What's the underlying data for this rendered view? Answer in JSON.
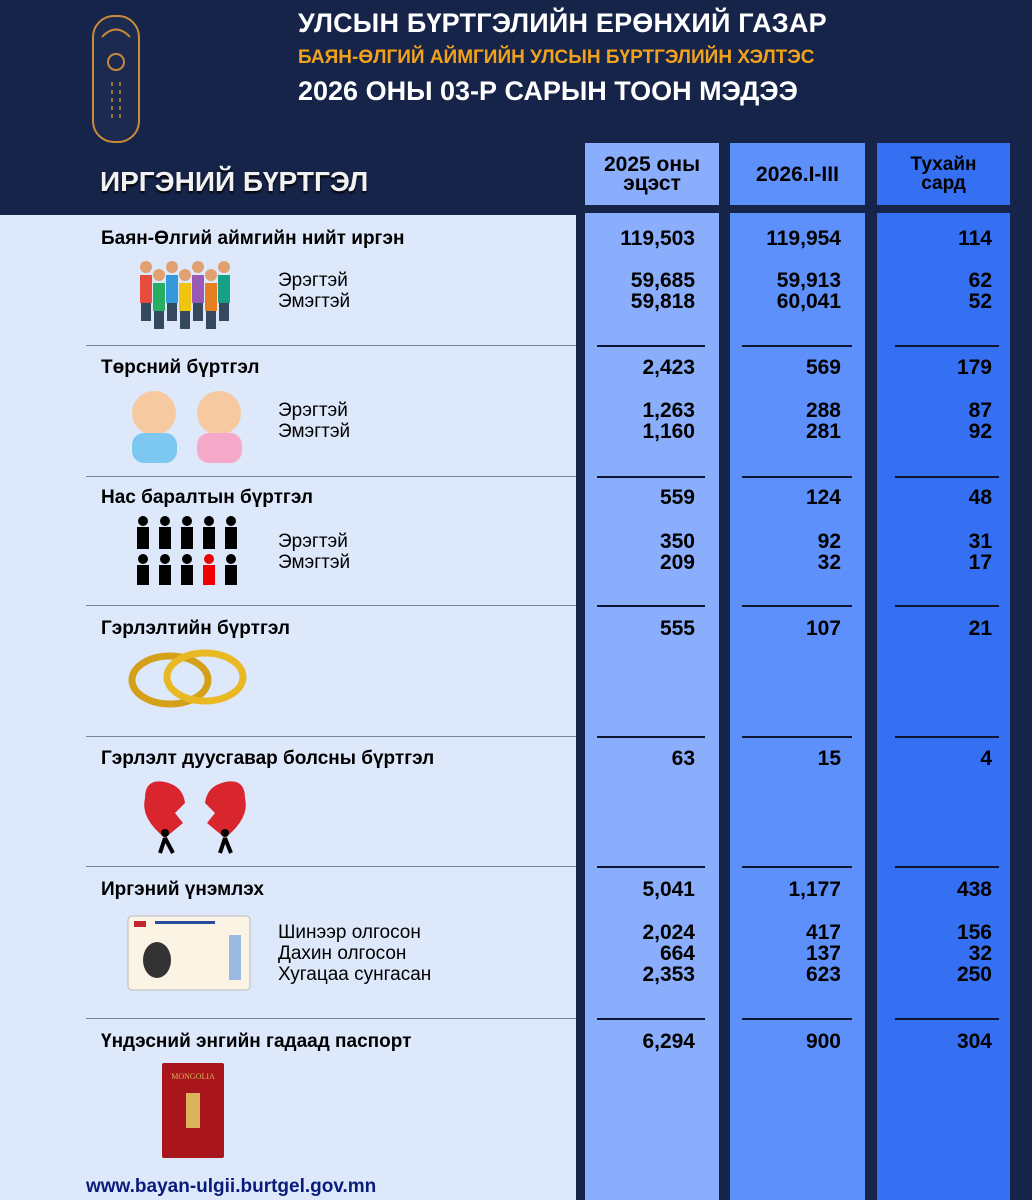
{
  "header": {
    "title": "УЛСЫН БҮРТГЭЛИЙН ЕРӨНХИЙ ГАЗАР",
    "subtitle": "БАЯН-ӨЛГИЙ АЙМГИЙН УЛСЫН БҮРТГЭЛИЙН ХЭЛТЭС",
    "period_title": "2026 ОНЫ 03-Р САРЫН ТООН МЭДЭЭ",
    "section": "ИРГЭНИЙ БҮРТГЭЛ"
  },
  "columns": [
    {
      "line1": "2025 оны",
      "line2": "эцэст"
    },
    {
      "line1": "2026.I-III",
      "line2": ""
    },
    {
      "line1": "Тухайн",
      "line2": "сард"
    }
  ],
  "colors": {
    "background": "#17244a",
    "panel": "#dde8fb",
    "col1": "#8aaefc",
    "col2": "#5e90fb",
    "col3": "#3670f2",
    "accent": "#f0a21c"
  },
  "sections": [
    {
      "title": "Баян-Өлгий аймгийн нийт иргэн",
      "icon": "crowd-icon",
      "values": [
        "119,503",
        "119,954",
        "114"
      ],
      "subs": [
        {
          "label": "Эрэгтэй",
          "values": [
            "59,685",
            "59,913",
            "62"
          ]
        },
        {
          "label": "Эмэгтэй",
          "values": [
            "59,818",
            "60,041",
            "52"
          ]
        }
      ]
    },
    {
      "title": "Төрсний бүртгэл",
      "icon": "babies-icon",
      "values": [
        "2,423",
        "569",
        "179"
      ],
      "subs": [
        {
          "label": "Эрэгтэй",
          "values": [
            "1,263",
            "288",
            "87"
          ]
        },
        {
          "label": "Эмэгтэй",
          "values": [
            "1,160",
            "281",
            "92"
          ]
        }
      ]
    },
    {
      "title": "Нас баралтын бүртгэл",
      "icon": "people-figures-icon",
      "values": [
        "559",
        "124",
        "48"
      ],
      "subs": [
        {
          "label": "Эрэгтэй",
          "values": [
            "350",
            "92",
            "31"
          ]
        },
        {
          "label": "Эмэгтэй",
          "values": [
            "209",
            "32",
            "17"
          ]
        }
      ]
    },
    {
      "title": "Гэрлэлтийн бүртгэл",
      "icon": "wedding-rings-icon",
      "values": [
        "555",
        "107",
        "21"
      ],
      "subs": []
    },
    {
      "title": "Гэрлэлт дуусгавар болсны бүртгэл",
      "icon": "broken-heart-icon",
      "values": [
        "63",
        "15",
        "4"
      ],
      "subs": []
    },
    {
      "title": "Иргэний үнэмлэх",
      "icon": "id-card-icon",
      "values": [
        "5,041",
        "1,177",
        "438"
      ],
      "subs": [
        {
          "label": "Шинээр олгосон",
          "values": [
            "2,024",
            "417",
            "156"
          ]
        },
        {
          "label": "Дахин олгосон",
          "values": [
            "664",
            "137",
            "32"
          ]
        },
        {
          "label": "Хугацаа сунгасан",
          "values": [
            "2,353",
            "623",
            "250"
          ]
        }
      ]
    },
    {
      "title": "Үндэсний энгийн гадаад паспорт",
      "icon": "passport-icon",
      "values": [
        "6,294",
        "900",
        "304"
      ],
      "subs": []
    }
  ],
  "passport_text": "MONGOLIA",
  "footer": {
    "url": "www.bayan-ulgii.burtgel.gov.mn"
  }
}
